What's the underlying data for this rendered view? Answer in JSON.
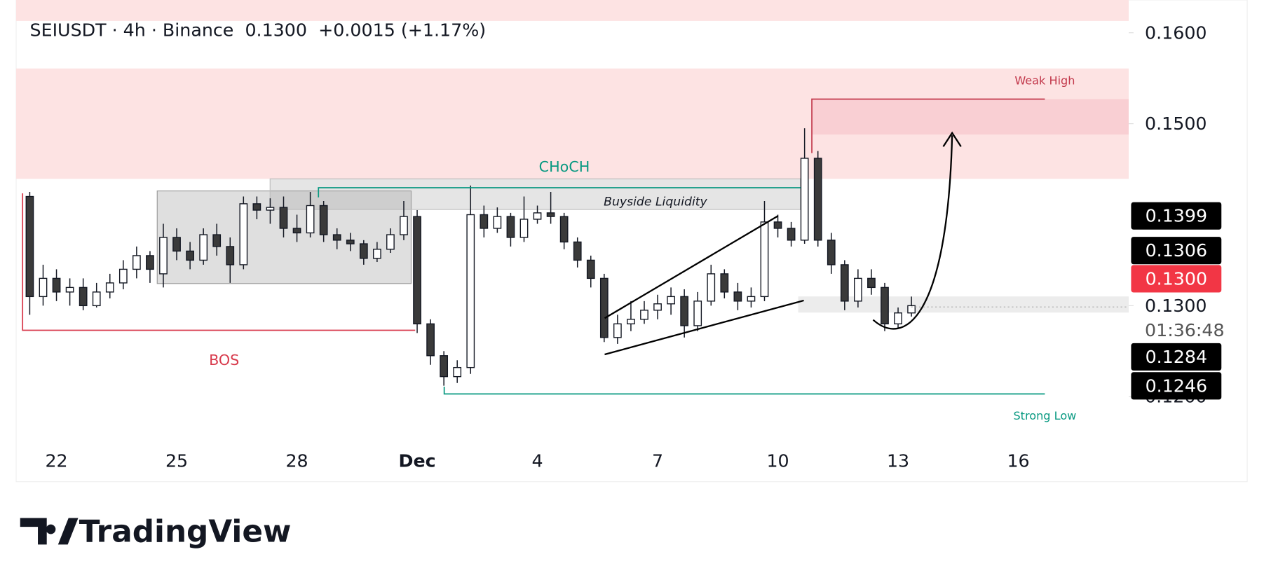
{
  "chart_data": {
    "type": "candlestick",
    "header": {
      "symbol": "SEIUSDT · 4h · Binance",
      "price": "0.1300",
      "change": "+0.0015 (+1.17%)"
    },
    "categories": [
      null,
      null,
      "22",
      null,
      null,
      null,
      null,
      null,
      null,
      null,
      null,
      "25",
      null,
      null,
      null,
      null,
      null,
      null,
      null,
      null,
      "28",
      null,
      null,
      null,
      null,
      null,
      null,
      null,
      null,
      "Dec",
      null,
      null,
      null,
      null,
      null,
      null,
      null,
      null,
      "4",
      null,
      null,
      null,
      null,
      null,
      null,
      null,
      null,
      "7",
      null,
      null,
      null,
      null,
      null,
      null,
      null,
      null,
      "10",
      null,
      null,
      null,
      null,
      null,
      null,
      null,
      null,
      "13",
      null,
      null,
      null,
      null,
      null,
      null,
      null,
      null,
      "16",
      null,
      null,
      null,
      null,
      null,
      null,
      null,
      null
    ],
    "open": [
      0.142,
      0.131,
      0.133,
      0.1315,
      0.132,
      0.13,
      0.1315,
      0.1325,
      0.134,
      0.1355,
      0.1335,
      0.1375,
      0.136,
      0.135,
      0.1378,
      0.1365,
      0.1345,
      0.1412,
      0.1405,
      0.1408,
      0.1385,
      0.138,
      0.141,
      0.1378,
      0.1372,
      0.1368,
      0.1352,
      0.1362,
      0.1378,
      0.1398,
      0.128,
      0.1245,
      0.1222,
      0.1232,
      0.14,
      0.1385,
      0.1398,
      0.1375,
      0.1395,
      0.1402,
      0.1398,
      0.137,
      0.135,
      0.133,
      0.1265,
      0.128,
      0.1285,
      0.1295,
      0.1302,
      0.131,
      0.1278,
      0.1305,
      0.1335,
      0.1315,
      0.1305,
      0.131,
      0.1392,
      0.1385,
      0.1372,
      0.1462,
      0.1372,
      0.1345,
      0.1305,
      0.133,
      0.132,
      0.128,
      0.1292,
      null,
      null,
      null,
      null,
      null,
      null,
      null,
      null,
      null,
      null,
      null,
      null,
      null,
      null,
      null,
      null
    ],
    "high": [
      0.1425,
      0.1345,
      0.134,
      0.133,
      0.133,
      0.1325,
      0.1335,
      0.135,
      0.1365,
      0.136,
      0.139,
      0.1385,
      0.137,
      0.1385,
      0.139,
      0.1375,
      0.142,
      0.142,
      0.1418,
      0.142,
      0.14,
      0.1425,
      0.1415,
      0.1385,
      0.138,
      0.1372,
      0.137,
      0.1385,
      0.1415,
      0.1405,
      0.1285,
      0.125,
      0.124,
      0.1432,
      0.141,
      0.1408,
      0.1402,
      0.142,
      0.141,
      0.1425,
      0.1402,
      0.1375,
      0.1355,
      0.1335,
      0.129,
      0.1305,
      0.1305,
      0.1312,
      0.132,
      0.1318,
      0.1315,
      0.1345,
      0.134,
      0.1325,
      0.132,
      0.1415,
      0.14,
      0.1392,
      0.1495,
      0.147,
      0.138,
      0.135,
      0.134,
      0.134,
      0.1325,
      0.1298,
      0.131,
      null,
      null,
      null,
      null,
      null,
      null,
      null,
      null,
      null,
      null,
      null,
      null,
      null,
      null,
      null,
      null
    ],
    "low": [
      0.129,
      0.13,
      0.1305,
      0.13,
      0.1295,
      0.1298,
      0.1308,
      0.1318,
      0.133,
      0.1325,
      0.132,
      0.135,
      0.134,
      0.1345,
      0.1355,
      0.1325,
      0.134,
      0.1395,
      0.139,
      0.1375,
      0.137,
      0.1375,
      0.137,
      0.1362,
      0.136,
      0.1345,
      0.1348,
      0.1358,
      0.1372,
      0.127,
      0.1235,
      0.1212,
      0.1215,
      0.1225,
      0.1375,
      0.138,
      0.1365,
      0.137,
      0.139,
      0.139,
      0.1362,
      0.1342,
      0.132,
      0.126,
      0.1258,
      0.1272,
      0.128,
      0.1285,
      0.129,
      0.1265,
      0.1272,
      0.13,
      0.1308,
      0.1295,
      0.1298,
      0.1305,
      0.1375,
      0.1365,
      0.1368,
      0.1365,
      0.1335,
      0.1295,
      0.1298,
      0.1312,
      0.1272,
      0.1275,
      0.1288,
      null,
      null,
      null,
      null,
      null,
      null,
      null,
      null,
      null,
      null,
      null,
      null,
      null,
      null,
      null,
      null
    ],
    "close": [
      0.131,
      0.133,
      0.1315,
      0.132,
      0.13,
      0.1315,
      0.1325,
      0.134,
      0.1355,
      0.134,
      0.1375,
      0.136,
      0.135,
      0.1378,
      0.1365,
      0.1345,
      0.1412,
      0.1405,
      0.1408,
      0.1385,
      0.138,
      0.141,
      0.1378,
      0.1372,
      0.1368,
      0.1352,
      0.1362,
      0.1378,
      0.1398,
      0.128,
      0.1245,
      0.1222,
      0.1232,
      0.14,
      0.1385,
      0.1398,
      0.1375,
      0.1395,
      0.1402,
      0.1398,
      0.137,
      0.135,
      0.133,
      0.1265,
      0.128,
      0.1285,
      0.1295,
      0.1302,
      0.131,
      0.1278,
      0.1305,
      0.1335,
      0.1315,
      0.1305,
      0.131,
      0.1392,
      0.1385,
      0.1372,
      0.1462,
      0.1372,
      0.1345,
      0.1305,
      0.133,
      0.132,
      0.128,
      0.1292,
      0.13,
      null,
      null,
      null,
      null,
      null,
      null,
      null,
      null,
      null,
      null,
      null,
      null,
      null,
      null,
      null,
      null
    ],
    "up_color": "#ffffff",
    "down_color": "#3a3a3a",
    "wick_color": "#131722",
    "ylim": [
      0.111,
      0.1636
    ],
    "yticks": [
      {
        "value": 0.16,
        "label": "0.1600"
      },
      {
        "value": 0.15,
        "label": "0.1500"
      },
      {
        "value": 0.13,
        "label": "0.1300"
      },
      {
        "value": 0.12,
        "label": "0.1200"
      }
    ],
    "price_labels": [
      {
        "value": 0.1399,
        "label": "0.1399",
        "color": "#000000"
      },
      {
        "value": 0.1306,
        "label": "0.1306",
        "color": "#000000"
      },
      {
        "value": 0.13,
        "label": "0.1300",
        "color": "#f23645"
      },
      {
        "value": 0.1284,
        "label": "0.1284",
        "color": "#000000"
      },
      {
        "value": 0.1246,
        "label": "0.1246",
        "color": "#000000"
      }
    ],
    "countdown": "01:36:48",
    "annotations": [
      "Weak High",
      "CHoCH",
      "Buyside Liquidity",
      "BOS",
      "Strong Low"
    ],
    "watermark": "TradingView"
  }
}
